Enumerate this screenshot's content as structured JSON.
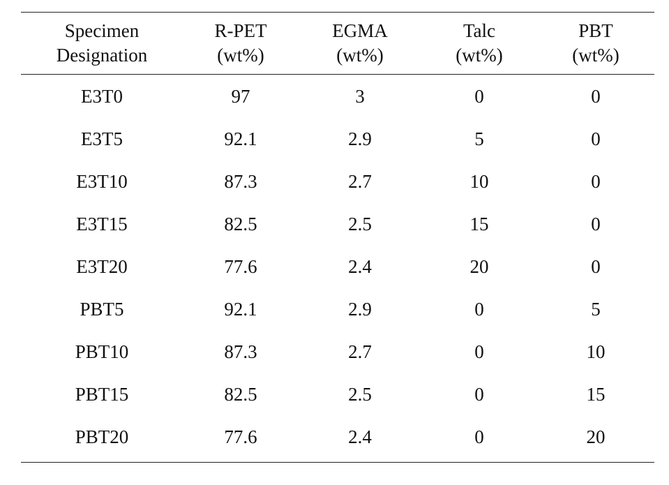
{
  "table": {
    "headers": [
      [
        "Specimen",
        "Designation"
      ],
      [
        "R-PET",
        "(wt%)"
      ],
      [
        "EGMA",
        "(wt%)"
      ],
      [
        "Talc",
        "(wt%)"
      ],
      [
        "PBT",
        "(wt%)"
      ]
    ],
    "rows": [
      [
        "E3T0",
        "97",
        "3",
        "0",
        "0"
      ],
      [
        "E3T5",
        "92.1",
        "2.9",
        "5",
        "0"
      ],
      [
        "E3T10",
        "87.3",
        "2.7",
        "10",
        "0"
      ],
      [
        "E3T15",
        "82.5",
        "2.5",
        "15",
        "0"
      ],
      [
        "E3T20",
        "77.6",
        "2.4",
        "20",
        "0"
      ],
      [
        "PBT5",
        "92.1",
        "2.9",
        "0",
        "5"
      ],
      [
        "PBT10",
        "87.3",
        "2.7",
        "0",
        "10"
      ],
      [
        "PBT15",
        "82.5",
        "2.5",
        "0",
        "15"
      ],
      [
        "PBT20",
        "77.6",
        "2.4",
        "0",
        "20"
      ]
    ]
  }
}
